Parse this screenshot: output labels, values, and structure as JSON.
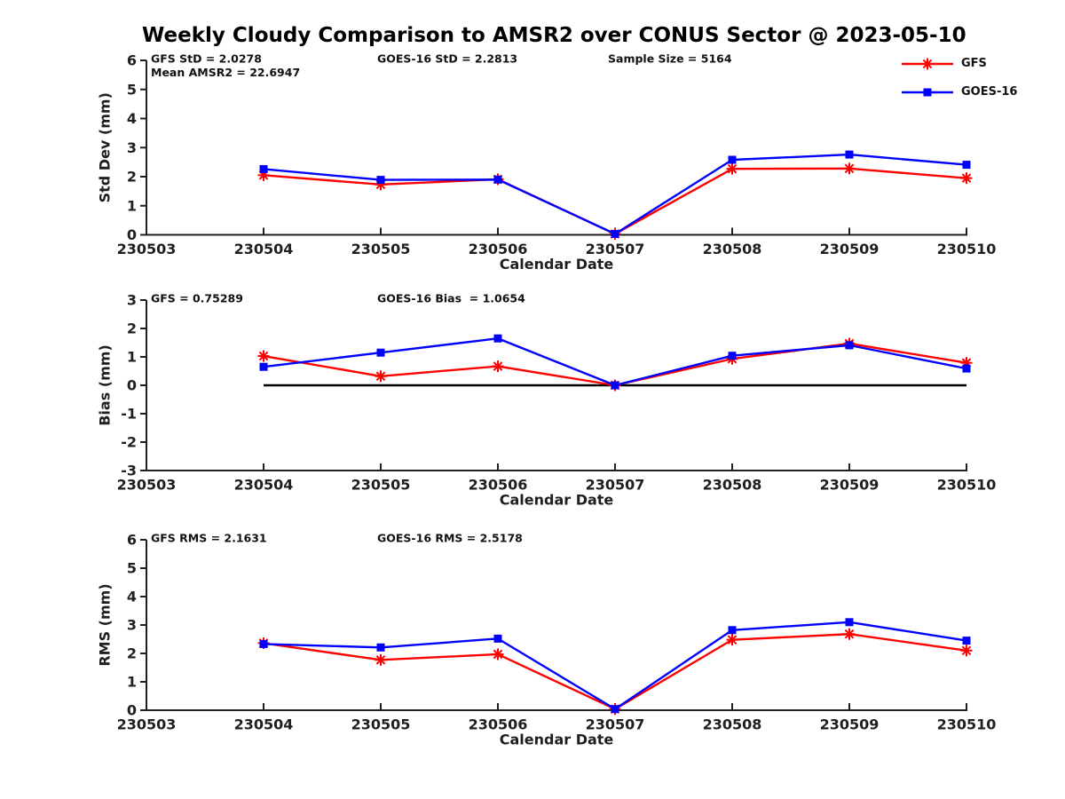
{
  "title": "Weekly Cloudy Comparison to AMSR2 over CONUS Sector @ 2023-05-10",
  "colors": {
    "gfs": "#ff0000",
    "goes16": "#0000ff",
    "axis": "#1f1f1f",
    "annotation": "#111111",
    "zero_line": "#000000"
  },
  "legend": [
    {
      "name": "GFS",
      "marker": "asterisk",
      "color_key": "gfs"
    },
    {
      "name": "GOES-16",
      "marker": "square",
      "color_key": "goes16"
    }
  ],
  "chart_data": [
    {
      "type": "line",
      "ylabel": "Std Dev (mm)",
      "xlabel": "Calendar Date",
      "ylim": [
        0,
        6
      ],
      "yticks": [
        0,
        1,
        2,
        3,
        4,
        5,
        6
      ],
      "x_categories": [
        "230503",
        "230504",
        "230505",
        "230506",
        "230507",
        "230508",
        "230509",
        "230510"
      ],
      "x": [
        "230504",
        "230505",
        "230506",
        "230507",
        "230508",
        "230509",
        "230510"
      ],
      "series": [
        {
          "name": "GFS",
          "marker": "asterisk",
          "color_key": "gfs",
          "values": [
            2.05,
            1.73,
            1.91,
            0.03,
            2.27,
            2.28,
            1.95
          ]
        },
        {
          "name": "GOES-16",
          "marker": "square",
          "color_key": "goes16",
          "values": [
            2.26,
            1.89,
            1.9,
            0.03,
            2.58,
            2.76,
            2.41
          ]
        }
      ],
      "annotations": [
        {
          "text": "GFS StD = 2.0278",
          "col": 0,
          "row": 0
        },
        {
          "text": "Mean AMSR2 = 22.6947",
          "col": 0,
          "row": 1
        },
        {
          "text": "GOES-16 StD = 2.2813",
          "col": 1,
          "row": 0
        },
        {
          "text": "Sample Size = 5164",
          "col": 2,
          "row": 0
        }
      ],
      "zero_line": false,
      "grid": false,
      "legend_position": "top-right-outside"
    },
    {
      "type": "line",
      "ylabel": "Bias (mm)",
      "xlabel": "Calendar Date",
      "ylim": [
        -3,
        3
      ],
      "yticks": [
        -3,
        -2,
        -1,
        0,
        1,
        2,
        3
      ],
      "x_categories": [
        "230503",
        "230504",
        "230505",
        "230506",
        "230507",
        "230508",
        "230509",
        "230510"
      ],
      "x": [
        "230504",
        "230505",
        "230506",
        "230507",
        "230508",
        "230509",
        "230510"
      ],
      "series": [
        {
          "name": "GFS",
          "marker": "asterisk",
          "color_key": "gfs",
          "values": [
            1.03,
            0.32,
            0.67,
            0.0,
            0.93,
            1.47,
            0.79
          ]
        },
        {
          "name": "GOES-16",
          "marker": "square",
          "color_key": "goes16",
          "values": [
            0.65,
            1.15,
            1.65,
            0.0,
            1.04,
            1.41,
            0.59
          ]
        }
      ],
      "annotations": [
        {
          "text": "GFS = 0.75289",
          "col": 0,
          "row": 0
        },
        {
          "text": "GOES-16 Bias  = 1.0654",
          "col": 1,
          "row": 0
        }
      ],
      "zero_line": true,
      "grid": false
    },
    {
      "type": "line",
      "ylabel": "RMS (mm)",
      "xlabel": "Calendar Date",
      "ylim": [
        0,
        6
      ],
      "yticks": [
        0,
        1,
        2,
        3,
        4,
        5,
        6
      ],
      "x_categories": [
        "230503",
        "230504",
        "230505",
        "230506",
        "230507",
        "230508",
        "230509",
        "230510"
      ],
      "x": [
        "230504",
        "230505",
        "230506",
        "230507",
        "230508",
        "230509",
        "230510"
      ],
      "series": [
        {
          "name": "GFS",
          "marker": "asterisk",
          "color_key": "gfs",
          "values": [
            2.36,
            1.77,
            1.97,
            0.04,
            2.48,
            2.68,
            2.1
          ]
        },
        {
          "name": "GOES-16",
          "marker": "square",
          "color_key": "goes16",
          "values": [
            2.33,
            2.21,
            2.52,
            0.04,
            2.82,
            3.1,
            2.45
          ]
        }
      ],
      "annotations": [
        {
          "text": "GFS RMS = 2.1631",
          "col": 0,
          "row": 0
        },
        {
          "text": "GOES-16 RMS = 2.5178",
          "col": 1,
          "row": 0
        }
      ],
      "zero_line": false,
      "grid": false
    }
  ]
}
